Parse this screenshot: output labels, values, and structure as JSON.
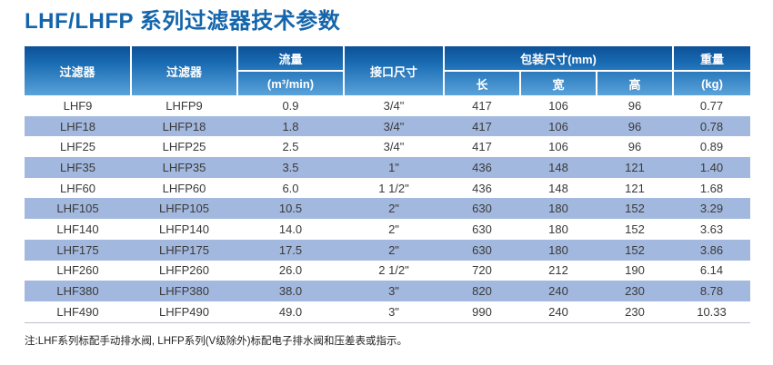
{
  "page": {
    "title": "LHF/LHFP 系列过滤器技术参数",
    "note": "注:LHF系列标配手动排水阀, LHFP系列(V级除外)标配电子排水阀和压差表或指示。"
  },
  "colors": {
    "title_blue": "#1465ab",
    "header_gradient_top": "#0c5097",
    "header_gradient_bottom": "#5aa2da",
    "alt_row_blue": "#a3b8de",
    "cell_text": "#3a3a3a"
  },
  "table": {
    "headers": {
      "filter_lhf": "过滤器",
      "filter_lhfp": "过滤器",
      "flow_title": "流量",
      "flow_unit": "(m³/min)",
      "port_size": "接口尺寸",
      "package_size": "包装尺寸(mm)",
      "length": "长",
      "width": "宽",
      "height": "高",
      "weight_title": "重量",
      "weight_unit": "(kg)"
    },
    "rows": [
      [
        "LHF9",
        "LHFP9",
        "0.9",
        "3/4\"",
        "417",
        "106",
        "96",
        "0.77"
      ],
      [
        "LHF18",
        "LHFP18",
        "1.8",
        "3/4\"",
        "417",
        "106",
        "96",
        "0.78"
      ],
      [
        "LHF25",
        "LHFP25",
        "2.5",
        "3/4\"",
        "417",
        "106",
        "96",
        "0.89"
      ],
      [
        "LHF35",
        "LHFP35",
        "3.5",
        "1\"",
        "436",
        "148",
        "121",
        "1.40"
      ],
      [
        "LHF60",
        "LHFP60",
        "6.0",
        "1 1/2\"",
        "436",
        "148",
        "121",
        "1.68"
      ],
      [
        "LHF105",
        "LHFP105",
        "10.5",
        "2\"",
        "630",
        "180",
        "152",
        "3.29"
      ],
      [
        "LHF140",
        "LHFP140",
        "14.0",
        "2\"",
        "630",
        "180",
        "152",
        "3.63"
      ],
      [
        "LHF175",
        "LHFP175",
        "17.5",
        "2\"",
        "630",
        "180",
        "152",
        "3.86"
      ],
      [
        "LHF260",
        "LHFP260",
        "26.0",
        "2 1/2\"",
        "720",
        "212",
        "190",
        "6.14"
      ],
      [
        "LHF380",
        "LHFP380",
        "38.0",
        "3\"",
        "820",
        "240",
        "230",
        "8.78"
      ],
      [
        "LHF490",
        "LHFP490",
        "49.0",
        "3\"",
        "990",
        "240",
        "230",
        "10.33"
      ]
    ]
  }
}
